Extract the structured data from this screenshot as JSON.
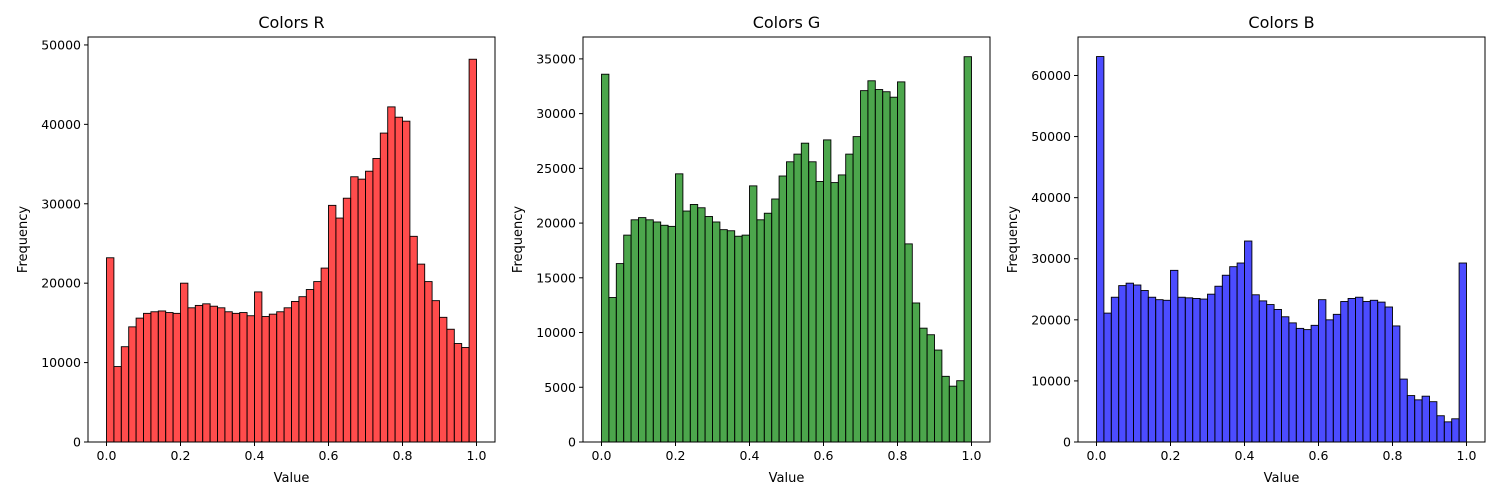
{
  "chart_data": [
    {
      "type": "bar",
      "title": "Colors R",
      "xlabel": "Value",
      "ylabel": "Frequency",
      "color": "#ff0000",
      "edge_color": "#000000",
      "xlim": [
        -0.05,
        1.05
      ],
      "ylim": [
        0,
        51000
      ],
      "xticks": [
        0.0,
        0.2,
        0.4,
        0.6,
        0.8,
        1.0
      ],
      "xtick_labels": [
        "0.0",
        "0.2",
        "0.4",
        "0.6",
        "0.8",
        "1.0"
      ],
      "yticks": [
        0,
        10000,
        20000,
        30000,
        40000,
        50000
      ],
      "ytick_labels": [
        "0",
        "10000",
        "20000",
        "30000",
        "40000",
        "50000"
      ],
      "bin_range": [
        0,
        1
      ],
      "values": [
        23200,
        9500,
        12000,
        14500,
        15600,
        16200,
        16400,
        16500,
        16300,
        16200,
        20000,
        16900,
        17200,
        17400,
        17100,
        16900,
        16400,
        16200,
        16300,
        15900,
        18900,
        15800,
        16100,
        16400,
        16900,
        17700,
        18300,
        19200,
        20200,
        21900,
        29800,
        28200,
        30700,
        33400,
        33100,
        34100,
        35700,
        38900,
        42200,
        40900,
        40400,
        25900,
        22400,
        20200,
        17800,
        15700,
        14200,
        12400,
        11900,
        48200
      ]
    },
    {
      "type": "bar",
      "title": "Colors G",
      "xlabel": "Value",
      "ylabel": "Frequency",
      "color": "#008000",
      "edge_color": "#000000",
      "xlim": [
        -0.05,
        1.05
      ],
      "ylim": [
        0,
        37000
      ],
      "xticks": [
        0.0,
        0.2,
        0.4,
        0.6,
        0.8,
        1.0
      ],
      "xtick_labels": [
        "0.0",
        "0.2",
        "0.4",
        "0.6",
        "0.8",
        "1.0"
      ],
      "yticks": [
        0,
        5000,
        10000,
        15000,
        20000,
        25000,
        30000,
        35000
      ],
      "ytick_labels": [
        "0",
        "5000",
        "10000",
        "15000",
        "20000",
        "25000",
        "30000",
        "35000"
      ],
      "bin_range": [
        0,
        1
      ],
      "values": [
        33600,
        13200,
        16300,
        18900,
        20300,
        20500,
        20300,
        20100,
        19800,
        19700,
        24500,
        21100,
        21700,
        21400,
        20600,
        20100,
        19400,
        19300,
        18800,
        18900,
        23400,
        20300,
        20900,
        22200,
        24300,
        25600,
        26300,
        27300,
        25600,
        23800,
        27600,
        23700,
        24400,
        26300,
        27900,
        32100,
        33000,
        32200,
        32000,
        31500,
        32900,
        18100,
        12700,
        10400,
        9800,
        8400,
        6000,
        5100,
        5600,
        35200
      ]
    },
    {
      "type": "bar",
      "title": "Colors B",
      "xlabel": "Value",
      "ylabel": "Frequency",
      "color": "#0000ff",
      "edge_color": "#000000",
      "xlim": [
        -0.05,
        1.05
      ],
      "ylim": [
        0,
        66300
      ],
      "xticks": [
        0.0,
        0.2,
        0.4,
        0.6,
        0.8,
        1.0
      ],
      "xtick_labels": [
        "0.0",
        "0.2",
        "0.4",
        "0.6",
        "0.8",
        "1.0"
      ],
      "yticks": [
        0,
        10000,
        20000,
        30000,
        40000,
        50000,
        60000
      ],
      "ytick_labels": [
        "0",
        "10000",
        "20000",
        "30000",
        "40000",
        "50000",
        "60000"
      ],
      "bin_range": [
        0,
        1
      ],
      "values": [
        63100,
        21100,
        23700,
        25600,
        26000,
        25700,
        24800,
        23700,
        23300,
        23200,
        28100,
        23700,
        23600,
        23500,
        23400,
        24200,
        25500,
        27300,
        28700,
        29300,
        32900,
        24100,
        23100,
        22500,
        21700,
        20500,
        19500,
        18600,
        18400,
        19100,
        23300,
        20000,
        20900,
        23000,
        23500,
        23700,
        23000,
        23200,
        22900,
        22100,
        19000,
        10300,
        7600,
        6900,
        7500,
        6600,
        4300,
        3300,
        3800,
        29300
      ]
    }
  ]
}
